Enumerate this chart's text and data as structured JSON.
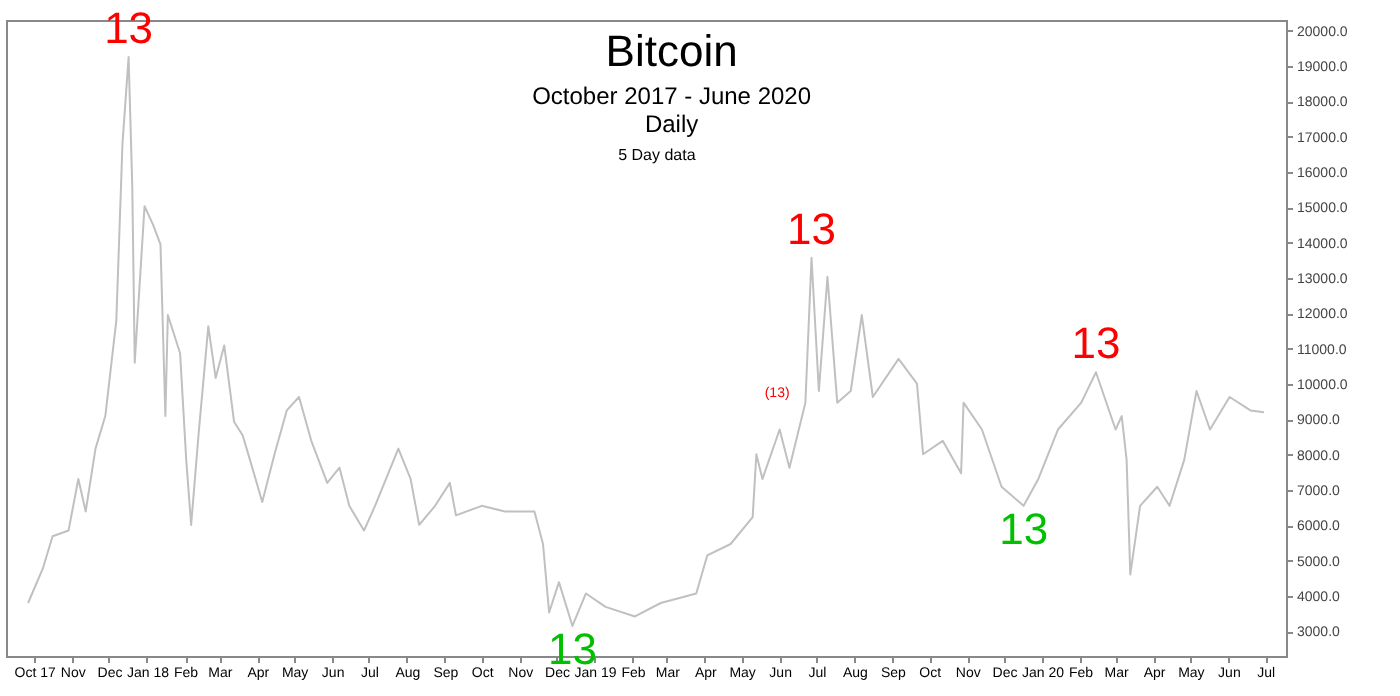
{
  "chart_data": {
    "type": "line",
    "title": "Bitcoin",
    "subtitle": [
      "October 2017 - June 2020",
      "Daily"
    ],
    "annotations": [
      "5 Day data",
      {
        "text": "13",
        "x": "2017-12-17",
        "y": 19250
      },
      {
        "text": "13",
        "x": "2018-12-14",
        "y": 3150
      },
      {
        "text": "(13)",
        "x": "2019-06-12",
        "y": 9470
      },
      {
        "text": "13",
        "x": "2019-06-27",
        "y": 13570
      },
      {
        "text": "13",
        "x": "2019-12-17",
        "y": 6550
      },
      {
        "text": "13",
        "x": "2020-02-14",
        "y": 10330
      }
    ],
    "x": [
      "2017-09-26",
      "2017-10-08",
      "2017-10-16",
      "2017-10-29",
      "2017-11-06",
      "2017-11-12",
      "2017-11-20",
      "2017-11-28",
      "2017-12-07",
      "2017-12-12",
      "2017-12-17",
      "2017-12-20",
      "2017-12-22",
      "2017-12-30",
      "2018-01-06",
      "2018-01-12",
      "2018-01-16",
      "2018-01-18",
      "2018-01-28",
      "2018-02-02",
      "2018-02-06",
      "2018-02-12",
      "2018-02-20",
      "2018-02-26",
      "2018-03-05",
      "2018-03-13",
      "2018-03-20",
      "2018-03-26",
      "2018-04-05",
      "2018-04-15",
      "2018-04-25",
      "2018-05-05",
      "2018-05-15",
      "2018-05-28",
      "2018-06-07",
      "2018-06-15",
      "2018-06-27",
      "2018-07-06",
      "2018-07-25",
      "2018-08-04",
      "2018-08-11",
      "2018-08-24",
      "2018-09-05",
      "2018-09-10",
      "2018-10-01",
      "2018-10-20",
      "2018-11-13",
      "2018-11-20",
      "2018-11-25",
      "2018-12-03",
      "2018-12-14",
      "2018-12-25",
      "2019-01-10",
      "2019-02-03",
      "2019-02-24",
      "2019-03-25",
      "2019-04-03",
      "2019-04-22",
      "2019-05-10",
      "2019-05-13",
      "2019-05-18",
      "2019-06-01",
      "2019-06-09",
      "2019-06-22",
      "2019-06-27",
      "2019-07-03",
      "2019-07-10",
      "2019-07-18",
      "2019-07-29",
      "2019-08-07",
      "2019-08-16",
      "2019-09-06",
      "2019-09-21",
      "2019-09-26",
      "2019-10-12",
      "2019-10-27",
      "2019-10-29",
      "2019-11-13",
      "2019-11-29",
      "2019-12-17",
      "2019-12-29",
      "2020-01-14",
      "2020-02-02",
      "2020-02-14",
      "2020-03-01",
      "2020-03-06",
      "2020-03-10",
      "2020-03-13",
      "2020-03-21",
      "2020-04-04",
      "2020-04-14",
      "2020-04-26",
      "2020-05-06",
      "2020-05-17",
      "2020-06-02",
      "2020-06-19",
      "2020-06-30"
    ],
    "series": [
      {
        "color": "#c0c0c0",
        "values": [
          3800,
          4770,
          5690,
          5850,
          7310,
          6390,
          8170,
          9090,
          11800,
          16800,
          19250,
          15570,
          10600,
          15030,
          14500,
          13950,
          9090,
          11950,
          10870,
          7850,
          6010,
          8550,
          11630,
          10170,
          11090,
          8930,
          8550,
          7850,
          6660,
          8010,
          9250,
          9630,
          8390,
          7200,
          7630,
          6550,
          5850,
          6550,
          8170,
          7310,
          6010,
          6550,
          7200,
          6280,
          6550,
          6390,
          6390,
          5470,
          3530,
          4390,
          3150,
          4070,
          3690,
          3420,
          3800,
          4070,
          5150,
          5470,
          6230,
          8010,
          7310,
          8710,
          7630,
          9470,
          13570,
          9800,
          13030,
          9470,
          9800,
          11950,
          9630,
          10710,
          10010,
          8010,
          8390,
          7470,
          9470,
          8710,
          7090,
          6550,
          7310,
          8710,
          9470,
          10330,
          8710,
          9090,
          7850,
          4610,
          6550,
          7090,
          6550,
          7850,
          9800,
          8710,
          9630,
          9250,
          9200
        ]
      }
    ],
    "xlim": [
      "2017-09-08",
      "2020-07-18"
    ],
    "xticks": [
      {
        "value": "2017-10-01",
        "label": "Oct 17"
      },
      {
        "value": "2017-11-01",
        "label": "Nov"
      },
      {
        "value": "2017-12-01",
        "label": "Dec"
      },
      {
        "value": "2018-01-01",
        "label": "Jan 18"
      },
      {
        "value": "2018-02-01",
        "label": "Feb"
      },
      {
        "value": "2018-03-01",
        "label": "Mar"
      },
      {
        "value": "2018-04-01",
        "label": "Apr"
      },
      {
        "value": "2018-05-01",
        "label": "May"
      },
      {
        "value": "2018-06-01",
        "label": "Jun"
      },
      {
        "value": "2018-07-01",
        "label": "Jul"
      },
      {
        "value": "2018-08-01",
        "label": "Aug"
      },
      {
        "value": "2018-09-01",
        "label": "Sep"
      },
      {
        "value": "2018-10-01",
        "label": "Oct"
      },
      {
        "value": "2018-11-01",
        "label": "Nov"
      },
      {
        "value": "2018-12-01",
        "label": "Dec"
      },
      {
        "value": "2019-01-01",
        "label": "Jan 19"
      },
      {
        "value": "2019-02-01",
        "label": "Feb"
      },
      {
        "value": "2019-03-01",
        "label": "Mar"
      },
      {
        "value": "2019-04-01",
        "label": "Apr"
      },
      {
        "value": "2019-05-01",
        "label": "May"
      },
      {
        "value": "2019-06-01",
        "label": "Jun"
      },
      {
        "value": "2019-07-01",
        "label": "Jul"
      },
      {
        "value": "2019-08-01",
        "label": "Aug"
      },
      {
        "value": "2019-09-01",
        "label": "Sep"
      },
      {
        "value": "2019-10-01",
        "label": "Oct"
      },
      {
        "value": "2019-11-01",
        "label": "Nov"
      },
      {
        "value": "2019-12-01",
        "label": "Dec"
      },
      {
        "value": "2020-01-01",
        "label": "Jan 20"
      },
      {
        "value": "2020-02-01",
        "label": "Feb"
      },
      {
        "value": "2020-03-01",
        "label": "Mar"
      },
      {
        "value": "2020-04-01",
        "label": "Apr"
      },
      {
        "value": "2020-05-01",
        "label": "May"
      },
      {
        "value": "2020-06-01",
        "label": "Jun"
      },
      {
        "value": "2020-07-01",
        "label": "Jul"
      }
    ],
    "ylim": [
      2300,
      20300
    ],
    "yticks": [
      {
        "value": 3000,
        "label": "3000.0"
      },
      {
        "value": 4000,
        "label": "4000.0"
      },
      {
        "value": 5000,
        "label": "5000.0"
      },
      {
        "value": 6000,
        "label": "6000.0"
      },
      {
        "value": 7000,
        "label": "7000.0"
      },
      {
        "value": 8000,
        "label": "8000.0"
      },
      {
        "value": 9000,
        "label": "9000.0"
      },
      {
        "value": 10000,
        "label": "10000.0"
      },
      {
        "value": 11000,
        "label": "11000.0"
      },
      {
        "value": 12000,
        "label": "12000.0"
      },
      {
        "value": 13000,
        "label": "13000.0"
      },
      {
        "value": 14000,
        "label": "14000.0"
      },
      {
        "value": 15000,
        "label": "15000.0"
      },
      {
        "value": 16000,
        "label": "16000.0"
      },
      {
        "value": 17000,
        "label": "17000.0"
      },
      {
        "value": 18000,
        "label": "18000.0"
      },
      {
        "value": 19000,
        "label": "19000.0"
      },
      {
        "value": 20000,
        "label": "20000.0"
      }
    ],
    "grid": false,
    "marker": "none",
    "line_style": "solid"
  }
}
